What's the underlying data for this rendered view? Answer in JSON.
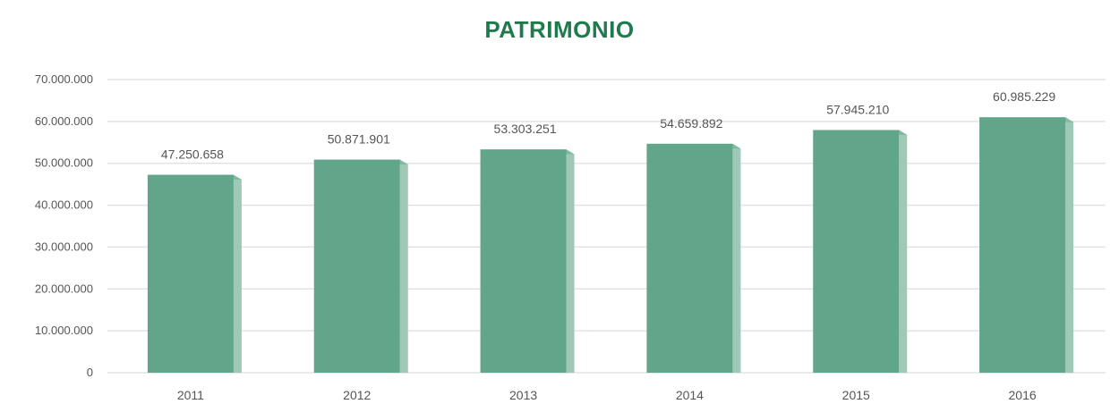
{
  "colors": {
    "title": "#1f7a4d",
    "bar_front": "#61a68a",
    "bar_side": "#9fc9b6",
    "bar_top": "#7fbaa1",
    "grid": "#e3e3e3",
    "text": "#555555"
  },
  "chart_data": {
    "type": "bar",
    "title": "PATRIMONIO",
    "xlabel": "",
    "ylabel": "",
    "categories": [
      "2011",
      "2012",
      "2013",
      "2014",
      "2015",
      "2016"
    ],
    "values": [
      47250658,
      50871901,
      53303251,
      54659892,
      57945210,
      60985229
    ],
    "value_labels": [
      "47.250.658",
      "50.871.901",
      "53.303.251",
      "54.659.892",
      "57.945.210",
      "60.985.229"
    ],
    "ylim": [
      0,
      70000000
    ],
    "y_ticks": [
      0,
      10000000,
      20000000,
      30000000,
      40000000,
      50000000,
      60000000,
      70000000
    ],
    "y_tick_labels": [
      "0",
      "10.000.000",
      "20.000.000",
      "30.000.000",
      "40.000.000",
      "50.000.000",
      "60.000.000",
      "70.000.000"
    ],
    "grid": true,
    "legend": "none"
  }
}
